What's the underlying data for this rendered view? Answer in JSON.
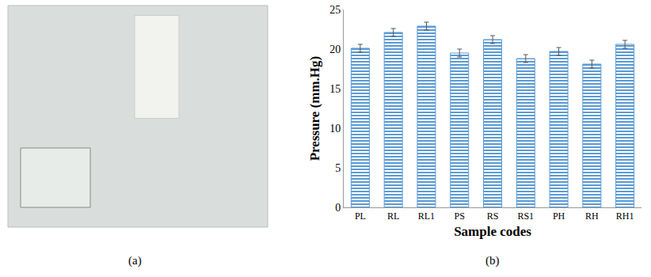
{
  "chart_data": {
    "type": "bar",
    "categories": [
      "PL",
      "RL",
      "RL1",
      "PS",
      "RS",
      "RS1",
      "PH",
      "RH",
      "RH1"
    ],
    "values": [
      20.1,
      22.1,
      22.9,
      19.5,
      21.2,
      18.8,
      19.7,
      18.1,
      20.6
    ],
    "errors": [
      0.5,
      0.5,
      0.5,
      0.5,
      0.5,
      0.5,
      0.5,
      0.5,
      0.5
    ],
    "color": "#5b9bd5",
    "x_label": "Sample codes",
    "y_label": "Pressure (mm.Hg)",
    "ylim": [
      0,
      25
    ],
    "yticks": [
      0,
      5,
      10,
      15,
      20,
      25
    ],
    "grid": false,
    "annotations": [
      "(a)",
      "(b)"
    ]
  }
}
